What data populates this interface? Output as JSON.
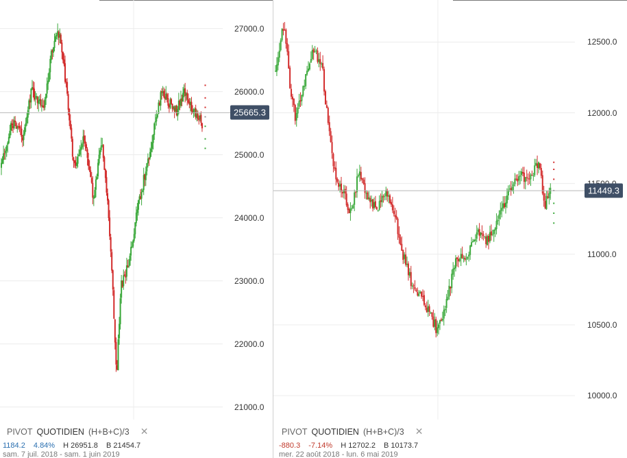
{
  "chart_data": [
    {
      "type": "candlestick",
      "title": "",
      "ylim": [
        20800,
        27300
      ],
      "y_ticks": [
        "27000.0",
        "26000.0",
        "25000.0",
        "24000.0",
        "23000.0",
        "22000.0",
        "21000.0"
      ],
      "y_tick_values": [
        27000,
        26000,
        25000,
        24000,
        23000,
        22000,
        21000
      ],
      "last_price": 25665.3,
      "last_price_label": "25665.3",
      "grid": true,
      "path": [
        [
          0,
          24800
        ],
        [
          0.05,
          25500
        ],
        [
          0.1,
          25300
        ],
        [
          0.14,
          26000
        ],
        [
          0.2,
          25800
        ],
        [
          0.24,
          26700
        ],
        [
          0.27,
          26950
        ],
        [
          0.3,
          26200
        ],
        [
          0.34,
          24800
        ],
        [
          0.39,
          25300
        ],
        [
          0.43,
          24300
        ],
        [
          0.47,
          25200
        ],
        [
          0.5,
          24200
        ],
        [
          0.52,
          23000
        ],
        [
          0.54,
          21500
        ],
        [
          0.56,
          22900
        ],
        [
          0.6,
          23300
        ],
        [
          0.64,
          24200
        ],
        [
          0.68,
          24800
        ],
        [
          0.72,
          25500
        ],
        [
          0.75,
          26000
        ],
        [
          0.79,
          25800
        ],
        [
          0.82,
          25700
        ],
        [
          0.86,
          26000
        ],
        [
          0.9,
          25700
        ],
        [
          0.94,
          25500
        ]
      ],
      "pivot_dots": [
        26100,
        25900,
        25750,
        25600,
        25450,
        25250,
        25100
      ],
      "legend": {
        "name": "PIVOT",
        "period": "QUOTIDIEN",
        "formula": "(H+B+C)/3",
        "close": "✕"
      },
      "stats": {
        "change": "1184.2",
        "change_pct": "4.84%",
        "high": "H 26951.8",
        "low": "B 21454.7"
      },
      "date_range": "sam. 7 juil. 2018 - sam. 1 juin 2019",
      "trend": "up",
      "colors": {
        "up": "#3aa83a",
        "down": "#d22a2a",
        "grid": "#ececec",
        "price_line": "#b7b7b7"
      }
    },
    {
      "type": "candlestick",
      "title": "",
      "ylim": [
        9830,
        12730
      ],
      "y_ticks": [
        "12500.0",
        "12000.0",
        "11500.0",
        "11000.0",
        "10500.0",
        "10000.0"
      ],
      "y_tick_values": [
        12500,
        12000,
        11500,
        11000,
        10500,
        10000
      ],
      "last_price": 11449.3,
      "last_price_label": "11449.3",
      "grid": true,
      "path": [
        [
          0,
          12300
        ],
        [
          0.03,
          12650
        ],
        [
          0.05,
          12200
        ],
        [
          0.07,
          11950
        ],
        [
          0.1,
          12200
        ],
        [
          0.13,
          12450
        ],
        [
          0.16,
          12350
        ],
        [
          0.18,
          11950
        ],
        [
          0.2,
          11600
        ],
        [
          0.23,
          11450
        ],
        [
          0.26,
          11300
        ],
        [
          0.29,
          11600
        ],
        [
          0.32,
          11400
        ],
        [
          0.35,
          11300
        ],
        [
          0.38,
          11450
        ],
        [
          0.41,
          11300
        ],
        [
          0.44,
          11000
        ],
        [
          0.47,
          10800
        ],
        [
          0.5,
          10700
        ],
        [
          0.53,
          10600
        ],
        [
          0.56,
          10450
        ],
        [
          0.59,
          10650
        ],
        [
          0.62,
          10950
        ],
        [
          0.66,
          11000
        ],
        [
          0.7,
          11150
        ],
        [
          0.73,
          11100
        ],
        [
          0.77,
          11250
        ],
        [
          0.81,
          11450
        ],
        [
          0.84,
          11550
        ],
        [
          0.88,
          11550
        ],
        [
          0.91,
          11650
        ],
        [
          0.93,
          11350
        ],
        [
          0.95,
          11450
        ]
      ],
      "pivot_dots": [
        11650,
        11600,
        11530,
        11450,
        11360,
        11290,
        11220
      ],
      "legend": {
        "name": "PIVOT",
        "period": "QUOTIDIEN",
        "formula": "(H+B+C)/3",
        "close": "✕"
      },
      "stats": {
        "change": "-880.3",
        "change_pct": "-7.14%",
        "high": "H 12702.2",
        "low": "B 10173.7"
      },
      "date_range": "mer. 22 août 2018 - lun. 6 mai 2019",
      "trend": "down",
      "colors": {
        "up": "#3aa83a",
        "down": "#d22a2a",
        "grid": "#ececec",
        "price_line": "#b7b7b7"
      }
    }
  ]
}
